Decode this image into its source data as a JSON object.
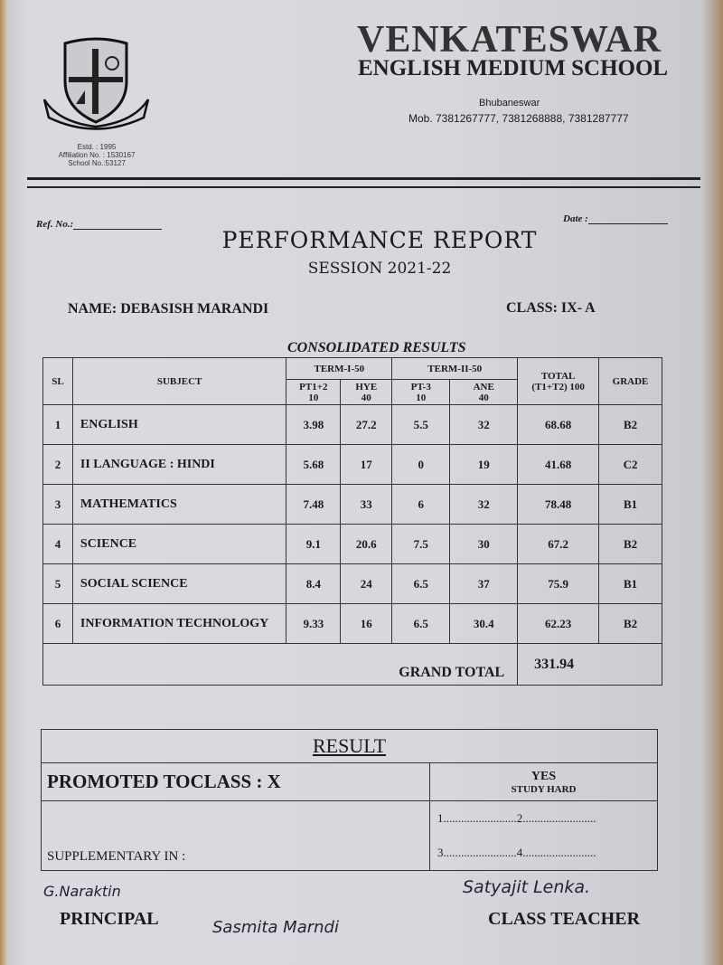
{
  "school": {
    "name": "VENKATESWAR",
    "subtitle": "ENGLISH MEDIUM SCHOOL",
    "city": "Bhubaneswar",
    "mobile": "Mob. 7381267777, 7381268888, 7381287777",
    "estd": "Estd. : 1995",
    "affiliation": "Affiliation No. : 1530167",
    "school_no": "School No.:53127",
    "logo_text": "VENKATESWAR E.M SCHOOL"
  },
  "ref_label": "Ref. No.:",
  "date_label": "Date :",
  "report_title": "PERFORMANCE REPORT",
  "session": "SESSION 2021-22",
  "student": {
    "name": "NAME: DEBASISH MARANDI",
    "class": "CLASS:  IX- A"
  },
  "table": {
    "caption": "CONSOLIDATED RESULTS",
    "headers": {
      "sl": "SL",
      "subject": "SUBJECT",
      "term1": "TERM-I-50",
      "term2": "TERM-II-50",
      "total": "TOTAL (T1+T2) 100",
      "grade": "GRADE",
      "pt12": "PT1+2 10",
      "hye": "HYE 40",
      "pt3": "PT-3 10",
      "ane": "ANE 40"
    },
    "rows": [
      {
        "sl": "1",
        "subject": "ENGLISH",
        "pt12": "3.98",
        "hye": "27.2",
        "pt3": "5.5",
        "ane": "32",
        "total": "68.68",
        "grade": "B2"
      },
      {
        "sl": "2",
        "subject": "II LANGUAGE :  HINDI",
        "pt12": "5.68",
        "hye": "17",
        "pt3": "0",
        "ane": "19",
        "total": "41.68",
        "grade": "C2"
      },
      {
        "sl": "3",
        "subject": "MATHEMATICS",
        "pt12": "7.48",
        "hye": "33",
        "pt3": "6",
        "ane": "32",
        "total": "78.48",
        "grade": "B1"
      },
      {
        "sl": "4",
        "subject": "SCIENCE",
        "pt12": "9.1",
        "hye": "20.6",
        "pt3": "7.5",
        "ane": "30",
        "total": "67.2",
        "grade": "B2"
      },
      {
        "sl": "5",
        "subject": "SOCIAL SCIENCE",
        "pt12": "8.4",
        "hye": "24",
        "pt3": "6.5",
        "ane": "37",
        "total": "75.9",
        "grade": "B1"
      },
      {
        "sl": "6",
        "subject": "INFORMATION TECHNOLOGY",
        "pt12": "9.33",
        "hye": "16",
        "pt3": "6.5",
        "ane": "30.4",
        "total": "62.23",
        "grade": "B2"
      }
    ],
    "grand_total_label": "GRAND TOTAL",
    "grand_total": "331.94"
  },
  "result": {
    "heading": "RESULT",
    "promoted": "PROMOTED TOCLASS : X",
    "decision": "YES",
    "remark": "STUDY HARD",
    "supplementary": "SUPPLEMENTARY IN :",
    "line1": "1.........................2.........................",
    "line2": "3.........................4........................."
  },
  "signatures": {
    "principal_label": "PRINCIPAL",
    "teacher_label": "CLASS TEACHER",
    "principal_sig": "G.Naraktin",
    "teacher_sig": "Satyajit Lenka.",
    "parent_sig": "Sasmita Marndi"
  }
}
